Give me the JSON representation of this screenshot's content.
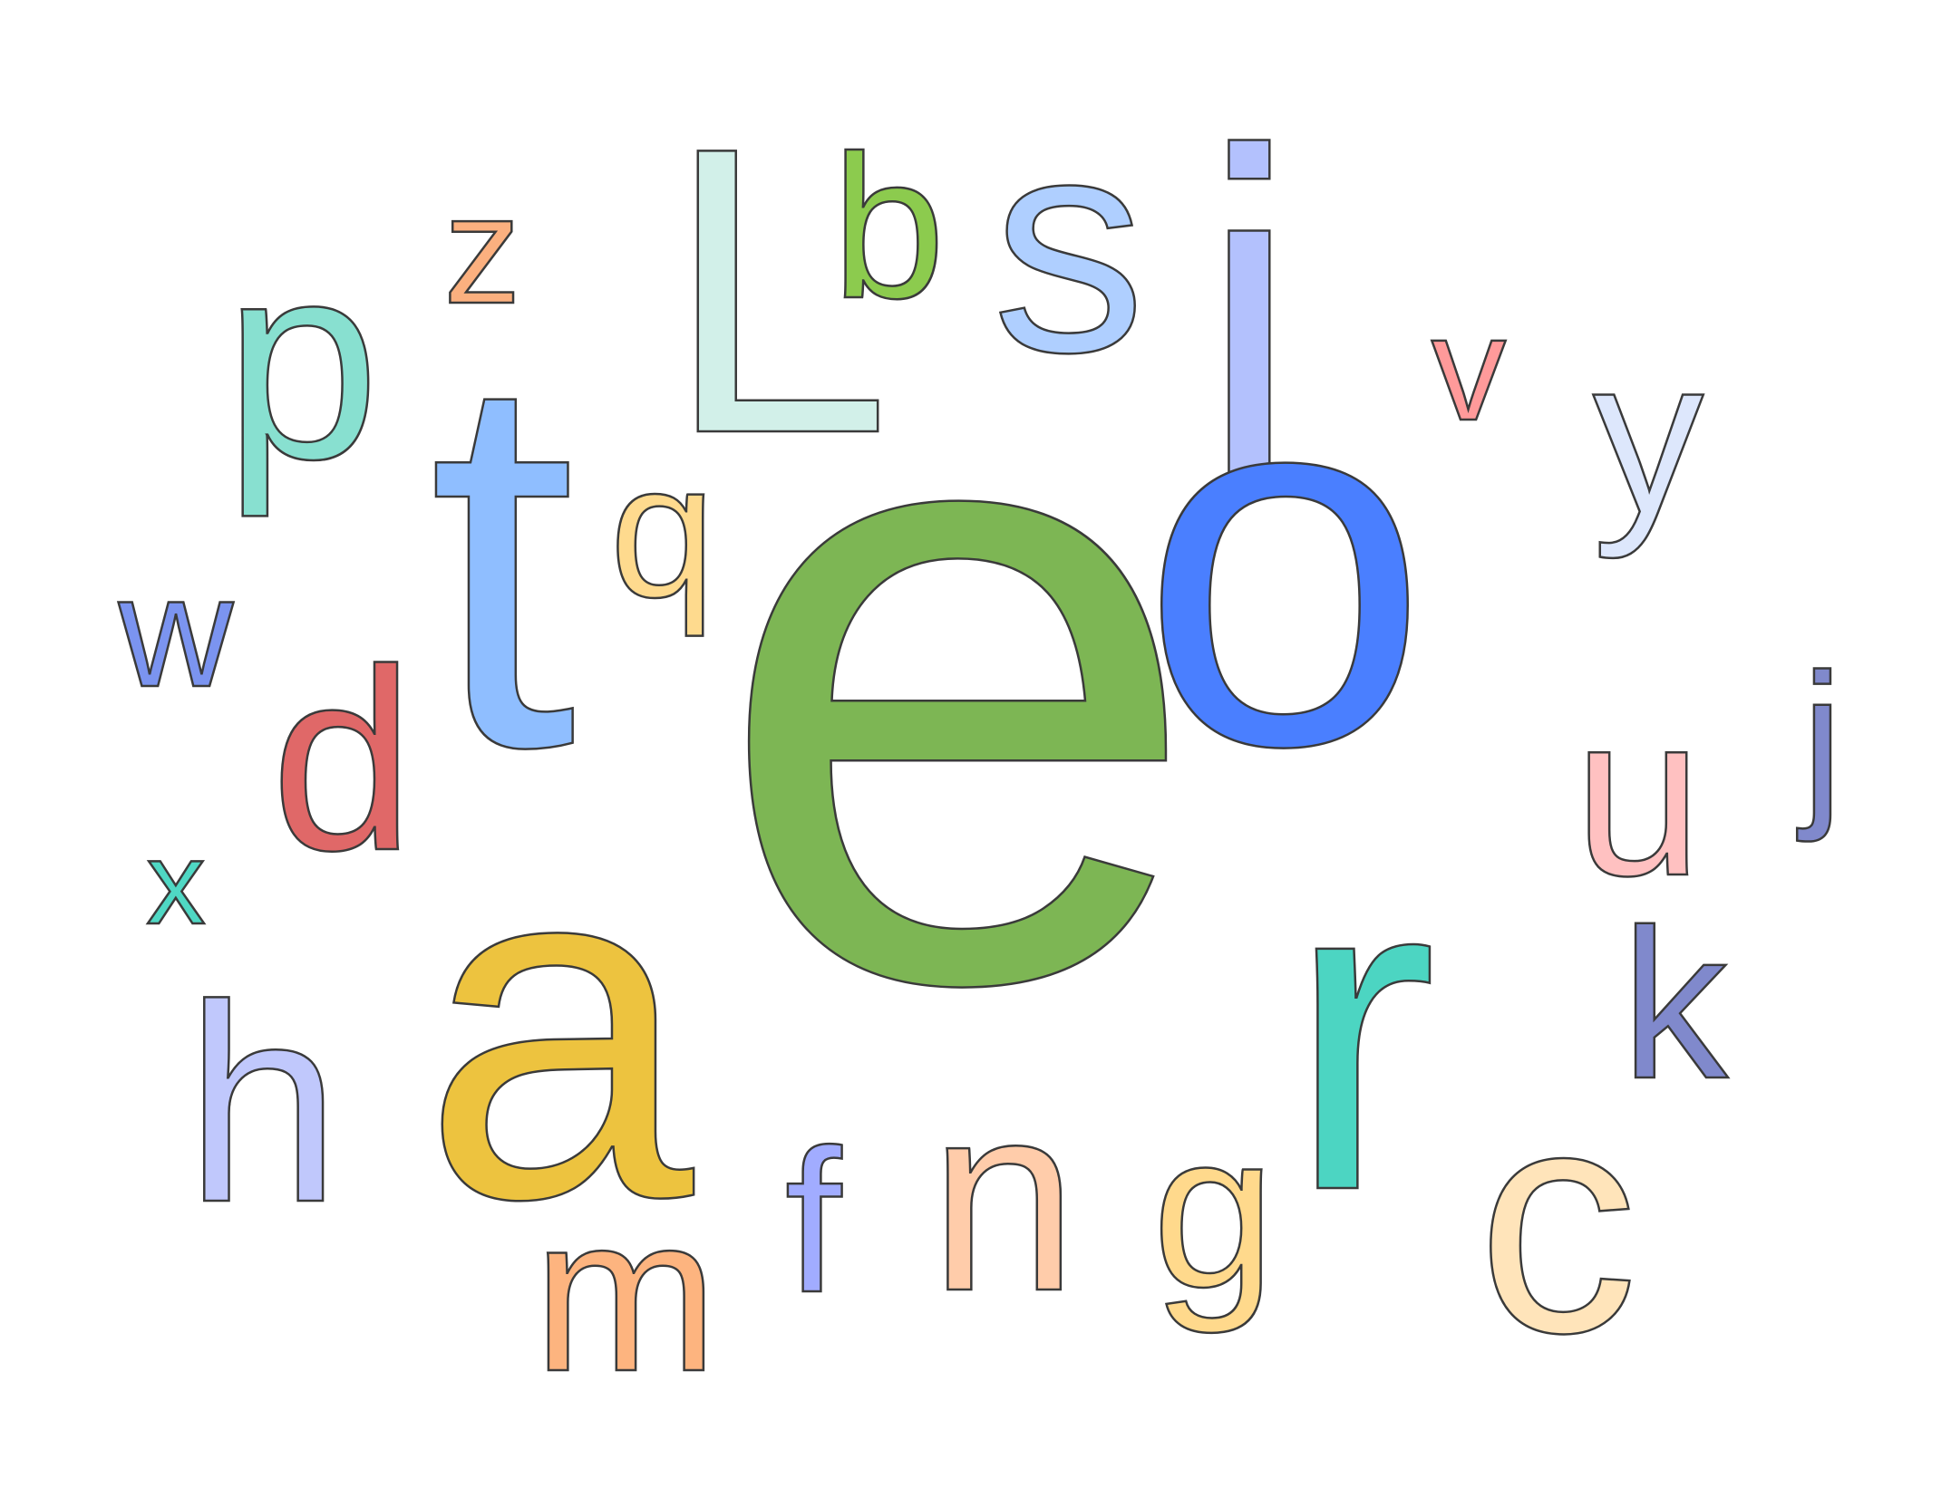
{
  "letters": [
    {
      "id": "z",
      "char": "z",
      "color": "#FBB07F"
    },
    {
      "id": "L",
      "char": "L",
      "color": "#D2F0E9"
    },
    {
      "id": "b",
      "char": "b",
      "color": "#8CCB4E"
    },
    {
      "id": "s",
      "char": "s",
      "color": "#AFCFFF"
    },
    {
      "id": "i",
      "char": "i",
      "color": "#B3C1FD"
    },
    {
      "id": "v",
      "char": "v",
      "color": "#FF9A9A"
    },
    {
      "id": "y",
      "char": "y",
      "color": "#DDE7FC"
    },
    {
      "id": "p",
      "char": "p",
      "color": "#88E0D0"
    },
    {
      "id": "t",
      "char": "t",
      "color": "#8FBEFF"
    },
    {
      "id": "q",
      "char": "q",
      "color": "#FEDA8E"
    },
    {
      "id": "e",
      "char": "e",
      "color": "#7DB654"
    },
    {
      "id": "o",
      "char": "o",
      "color": "#4A7FFF"
    },
    {
      "id": "w",
      "char": "w",
      "color": "#7B94F0"
    },
    {
      "id": "d",
      "char": "d",
      "color": "#E06868"
    },
    {
      "id": "j",
      "char": "j",
      "color": "#8089CC"
    },
    {
      "id": "u",
      "char": "u",
      "color": "#FFC1C1"
    },
    {
      "id": "x",
      "char": "x",
      "color": "#4FD8C4"
    },
    {
      "id": "a",
      "char": "a",
      "color": "#EDC33F"
    },
    {
      "id": "r",
      "char": "r",
      "color": "#4CD5C2"
    },
    {
      "id": "k",
      "char": "k",
      "color": "#8089CC"
    },
    {
      "id": "h",
      "char": "h",
      "color": "#C0C8FC"
    },
    {
      "id": "f",
      "char": "f",
      "color": "#A1ACFF"
    },
    {
      "id": "n",
      "char": "n",
      "color": "#FFCCAA"
    },
    {
      "id": "g",
      "char": "g",
      "color": "#FFD98C"
    },
    {
      "id": "c",
      "char": "c",
      "color": "#FFE4BA"
    },
    {
      "id": "m",
      "char": "m",
      "color": "#FDB47F"
    }
  ]
}
